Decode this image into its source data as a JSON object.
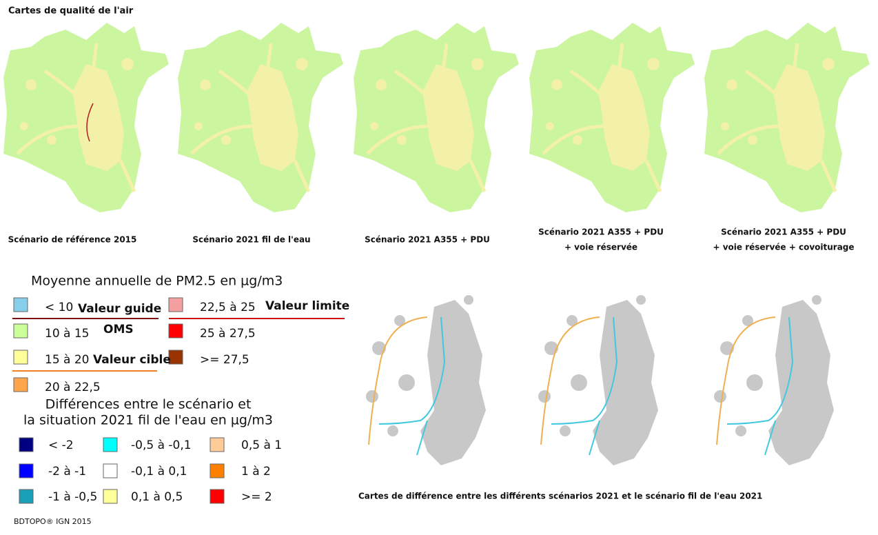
{
  "title": "Cartes de qualité de l'air",
  "maps": [
    {
      "caption": [
        "Scénario de référence 2015"
      ]
    },
    {
      "caption": [
        "Scénario 2021 fil de l'eau"
      ]
    },
    {
      "caption": [
        "Scénario 2021 A355 + PDU"
      ]
    },
    {
      "caption": [
        "Scénario 2021 A355 + PDU",
        "+ voie réservée"
      ]
    },
    {
      "caption": [
        "Scénario 2021 A355 + PDU",
        "+ voie réservée + covoiturage"
      ]
    }
  ],
  "pm_legend": {
    "title": "Moyenne annuelle de PM2.5 en µg/m3",
    "items": [
      {
        "label": "< 10",
        "color": "#87ceeb"
      },
      {
        "label": "10 à 15",
        "color": "#ccff99"
      },
      {
        "label": "15 à 20",
        "color": "#ffff99"
      },
      {
        "label": "20 à 22,5",
        "color": "#ffa64d"
      },
      {
        "label": "22,5 à 25",
        "color": "#f4a0a0"
      },
      {
        "label": "25 à 27,5",
        "color": "#ff0000"
      },
      {
        "label": ">= 27,5",
        "color": "#993300"
      }
    ],
    "annotations": [
      "Valeur guide",
      "OMS",
      "Valeur cible",
      "Valeur limite"
    ]
  },
  "diff_legend": {
    "title": [
      "Différences entre le scénario et",
      "la situation 2021 fil de l'eau en µg/m3"
    ],
    "items": [
      {
        "label": "< -2",
        "color": "#000080"
      },
      {
        "label": "-2 à -1",
        "color": "#0000ff"
      },
      {
        "label": "-1 à -0,5",
        "color": "#1aa0b8"
      },
      {
        "label": "-0,5 à -0,1",
        "color": "#00ffff"
      },
      {
        "label": "-0,1 à 0,1",
        "color": "#ffffff"
      },
      {
        "label": "0,1 à 0,5",
        "color": "#ffff99"
      },
      {
        "label": "0,5 à 1",
        "color": "#ffcc99"
      },
      {
        "label": "1 à 2",
        "color": "#ff8000"
      },
      {
        "label": ">= 2",
        "color": "#ff0000"
      }
    ]
  },
  "diff_caption": "Cartes de différence entre les différents scénarios 2021 et le scénario fil de l'eau 2021",
  "source": "BDTOPO® IGN 2015"
}
